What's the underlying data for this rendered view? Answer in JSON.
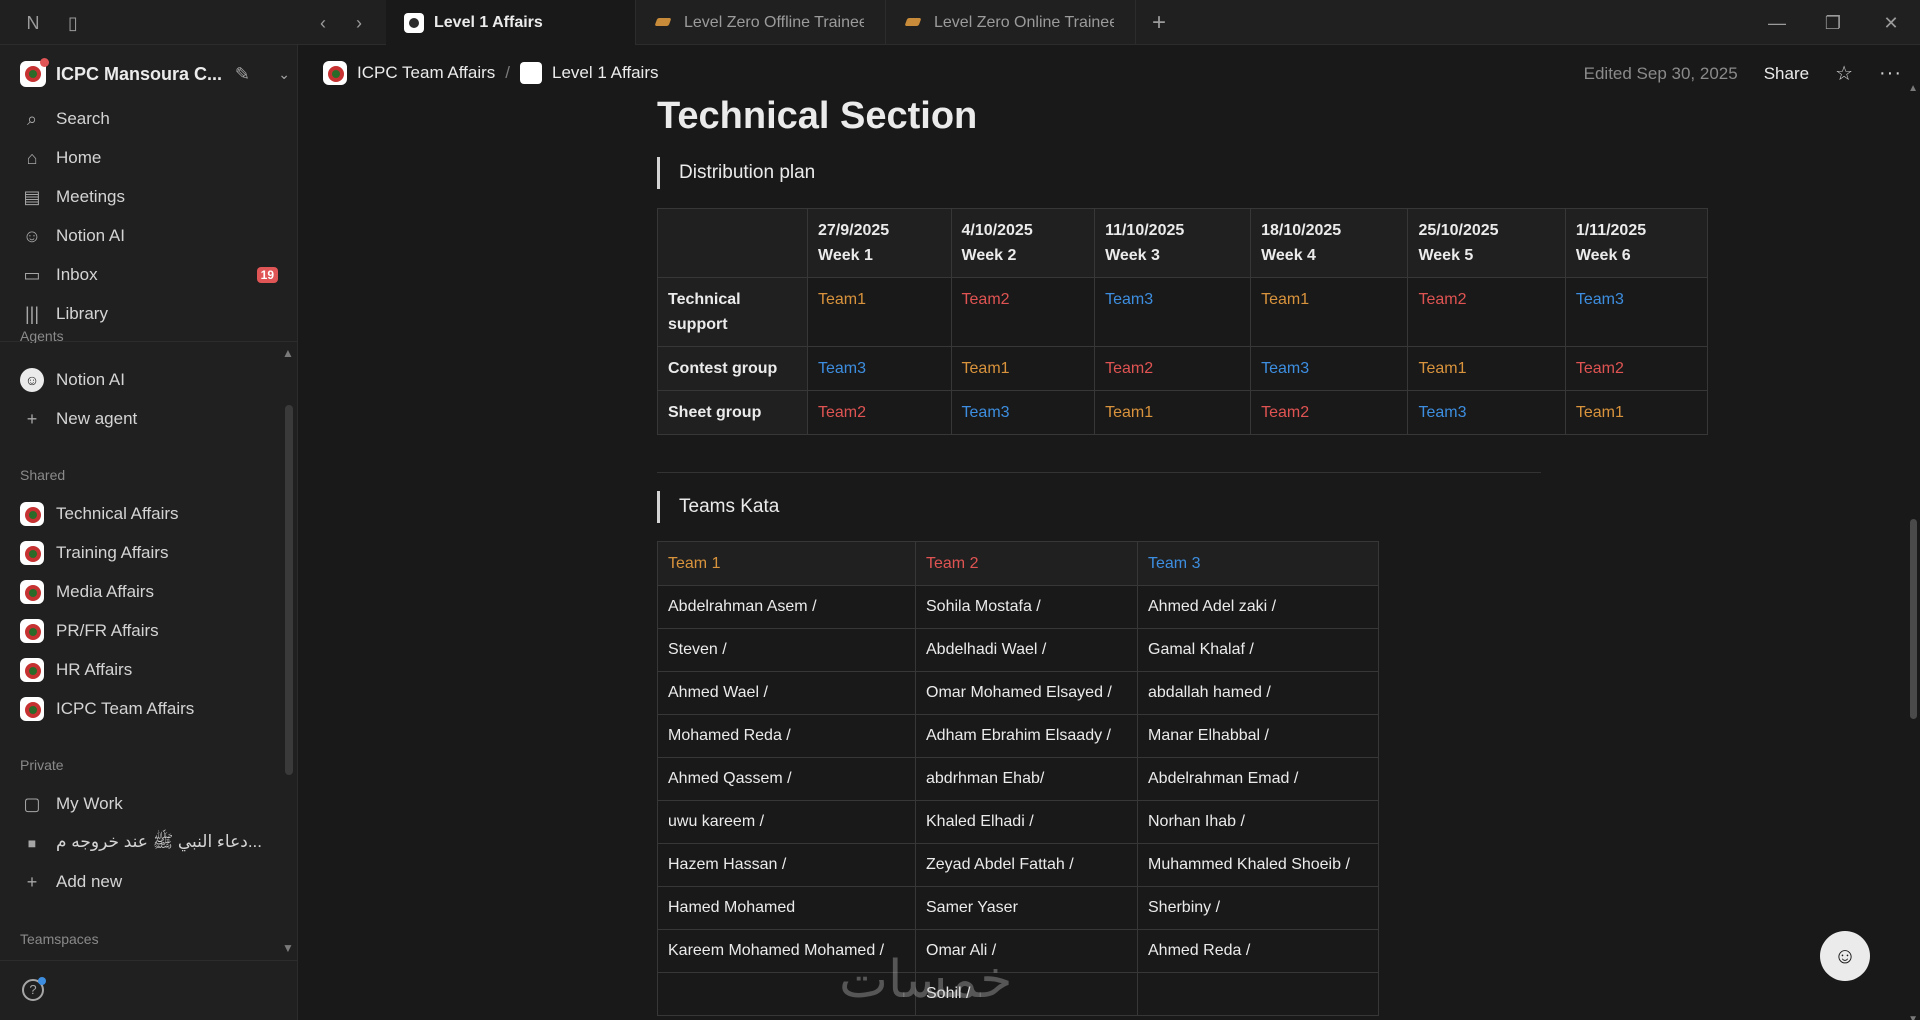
{
  "tabs": [
    {
      "label": "Level 1 Affairs",
      "active": true
    },
    {
      "label": "Level Zero Offline Trainees",
      "active": false
    },
    {
      "label": "Level Zero Online Trainees",
      "active": false
    }
  ],
  "workspace": {
    "name": "ICPC Mansoura C..."
  },
  "nav": [
    {
      "label": "Search",
      "icon": "search-icon"
    },
    {
      "label": "Home",
      "icon": "home-icon"
    },
    {
      "label": "Meetings",
      "icon": "meetings-icon"
    },
    {
      "label": "Notion AI",
      "icon": "notion-ai-icon"
    },
    {
      "label": "Inbox",
      "icon": "inbox-icon",
      "badge": "19"
    },
    {
      "label": "Library",
      "icon": "library-icon"
    }
  ],
  "agents": {
    "label": "Agents",
    "items": [
      "Notion AI",
      "New agent"
    ]
  },
  "shared": {
    "label": "Shared",
    "items": [
      "Technical Affairs",
      "Training Affairs",
      "Media Affairs",
      "PR/FR Affairs",
      "HR Affairs",
      "ICPC Team Affairs"
    ]
  },
  "private": {
    "label": "Private",
    "items": [
      "My Work",
      "دعاء النبي ﷺ عند خروجه م...",
      "Add new"
    ]
  },
  "teamspaces": {
    "label": "Teamspaces"
  },
  "breadcrumb": [
    "ICPC Team Affairs",
    "Level 1 Affairs"
  ],
  "header": {
    "edited": "Edited Sep 30, 2025",
    "share": "Share"
  },
  "page": {
    "title": "Technical Section",
    "distribution_heading": "Distribution plan",
    "kata_heading": "Teams Kata"
  },
  "plan": {
    "columns": [
      {
        "date": "27/9/2025",
        "week": "Week 1"
      },
      {
        "date": "4/10/2025",
        "week": "Week 2"
      },
      {
        "date": "11/10/2025",
        "week": "Week 3"
      },
      {
        "date": "18/10/2025",
        "week": "Week 4"
      },
      {
        "date": "25/10/2025",
        "week": "Week 5"
      },
      {
        "date": "1/11/2025",
        "week": "Week 6"
      }
    ],
    "rows": [
      {
        "label": "Technical support",
        "cells": [
          "Team1",
          "Team2",
          "Team3",
          "Team1",
          "Team2",
          "Team3"
        ]
      },
      {
        "label": "Contest group",
        "cells": [
          "Team3",
          "Team1",
          "Team2",
          "Team3",
          "Team1",
          "Team2"
        ]
      },
      {
        "label": "Sheet group",
        "cells": [
          "Team2",
          "Team3",
          "Team1",
          "Team2",
          "Team3",
          "Team1"
        ]
      }
    ]
  },
  "kata": {
    "headers": [
      "Team 1",
      "Team 2",
      "Team 3"
    ],
    "rows": [
      [
        "Abdelrahman Asem /",
        "Sohila Mostafa /",
        "Ahmed Adel zaki /"
      ],
      [
        "Steven /",
        "Abdelhadi Wael /",
        "Gamal Khalaf /"
      ],
      [
        "Ahmed Wael /",
        "Omar Mohamed Elsayed /",
        "abdallah hamed /"
      ],
      [
        "Mohamed Reda /",
        "Adham Ebrahim Elsaady /",
        "Manar Elhabbal /"
      ],
      [
        "Ahmed Qassem /",
        "abdrhman Ehab/",
        "Abdelrahman Emad /"
      ],
      [
        "uwu kareem /",
        "Khaled Elhadi /",
        "Norhan Ihab /"
      ],
      [
        "Hazem Hassan /",
        "Zeyad Abdel Fattah /",
        "Muhammed Khaled Shoeib /"
      ],
      [
        "Hamed Mohamed",
        "Samer Yaser",
        "Sherbiny /"
      ],
      [
        "Kareem Mohamed Mohamed /",
        "Omar Ali /",
        "Ahmed Reda /"
      ],
      [
        "",
        "Sohil /",
        ""
      ]
    ]
  },
  "watermark": "خمسات",
  "colors": {
    "team1": "#d9933c",
    "team2": "#df5452",
    "team3": "#3d8ee0"
  }
}
